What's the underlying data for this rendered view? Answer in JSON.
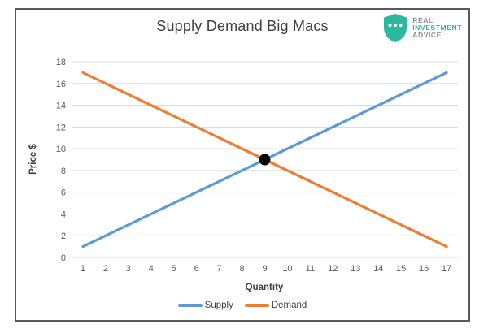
{
  "window": {
    "background": "#ffffff",
    "border_color": "#595959"
  },
  "header": {
    "title": "Supply Demand Big Macs"
  },
  "logo": {
    "line1": "REAL",
    "line2": "INVESTMENT",
    "line3": "ADVICE",
    "shield_color": "#2eb7a0",
    "dot_color": "#ffffff",
    "text_gray": "#8c8c8c",
    "text_teal": "#2eb7a0"
  },
  "chart_data": {
    "type": "line",
    "title": "Supply Demand Big Macs",
    "xlabel": "Quantity",
    "ylabel": "Price $",
    "x": [
      1,
      2,
      3,
      4,
      5,
      6,
      7,
      8,
      9,
      10,
      11,
      12,
      13,
      14,
      15,
      16,
      17
    ],
    "series": [
      {
        "name": "Supply",
        "color": "#5B9BD5",
        "values": [
          1,
          2,
          3,
          4,
          5,
          6,
          7,
          8,
          9,
          10,
          11,
          12,
          13,
          14,
          15,
          16,
          17
        ]
      },
      {
        "name": "Demand",
        "color": "#ED7D31",
        "values": [
          17,
          16,
          15,
          14,
          13,
          12,
          11,
          10,
          9,
          8,
          7,
          6,
          5,
          4,
          3,
          2,
          1
        ]
      }
    ],
    "annotations": [
      {
        "type": "point",
        "name": "equilibrium-point",
        "x": 9,
        "y": 9,
        "color": "#000000",
        "radius": 7
      }
    ],
    "ylim": [
      0,
      18
    ],
    "ytick_step": 2,
    "yticks": [
      0,
      2,
      4,
      6,
      8,
      10,
      12,
      14,
      16,
      18
    ],
    "grid": "horizontal",
    "gridline_color": "#d9d9d9",
    "tick_label_color": "#595959",
    "legend_position": "bottom",
    "line_width": 3.2
  }
}
